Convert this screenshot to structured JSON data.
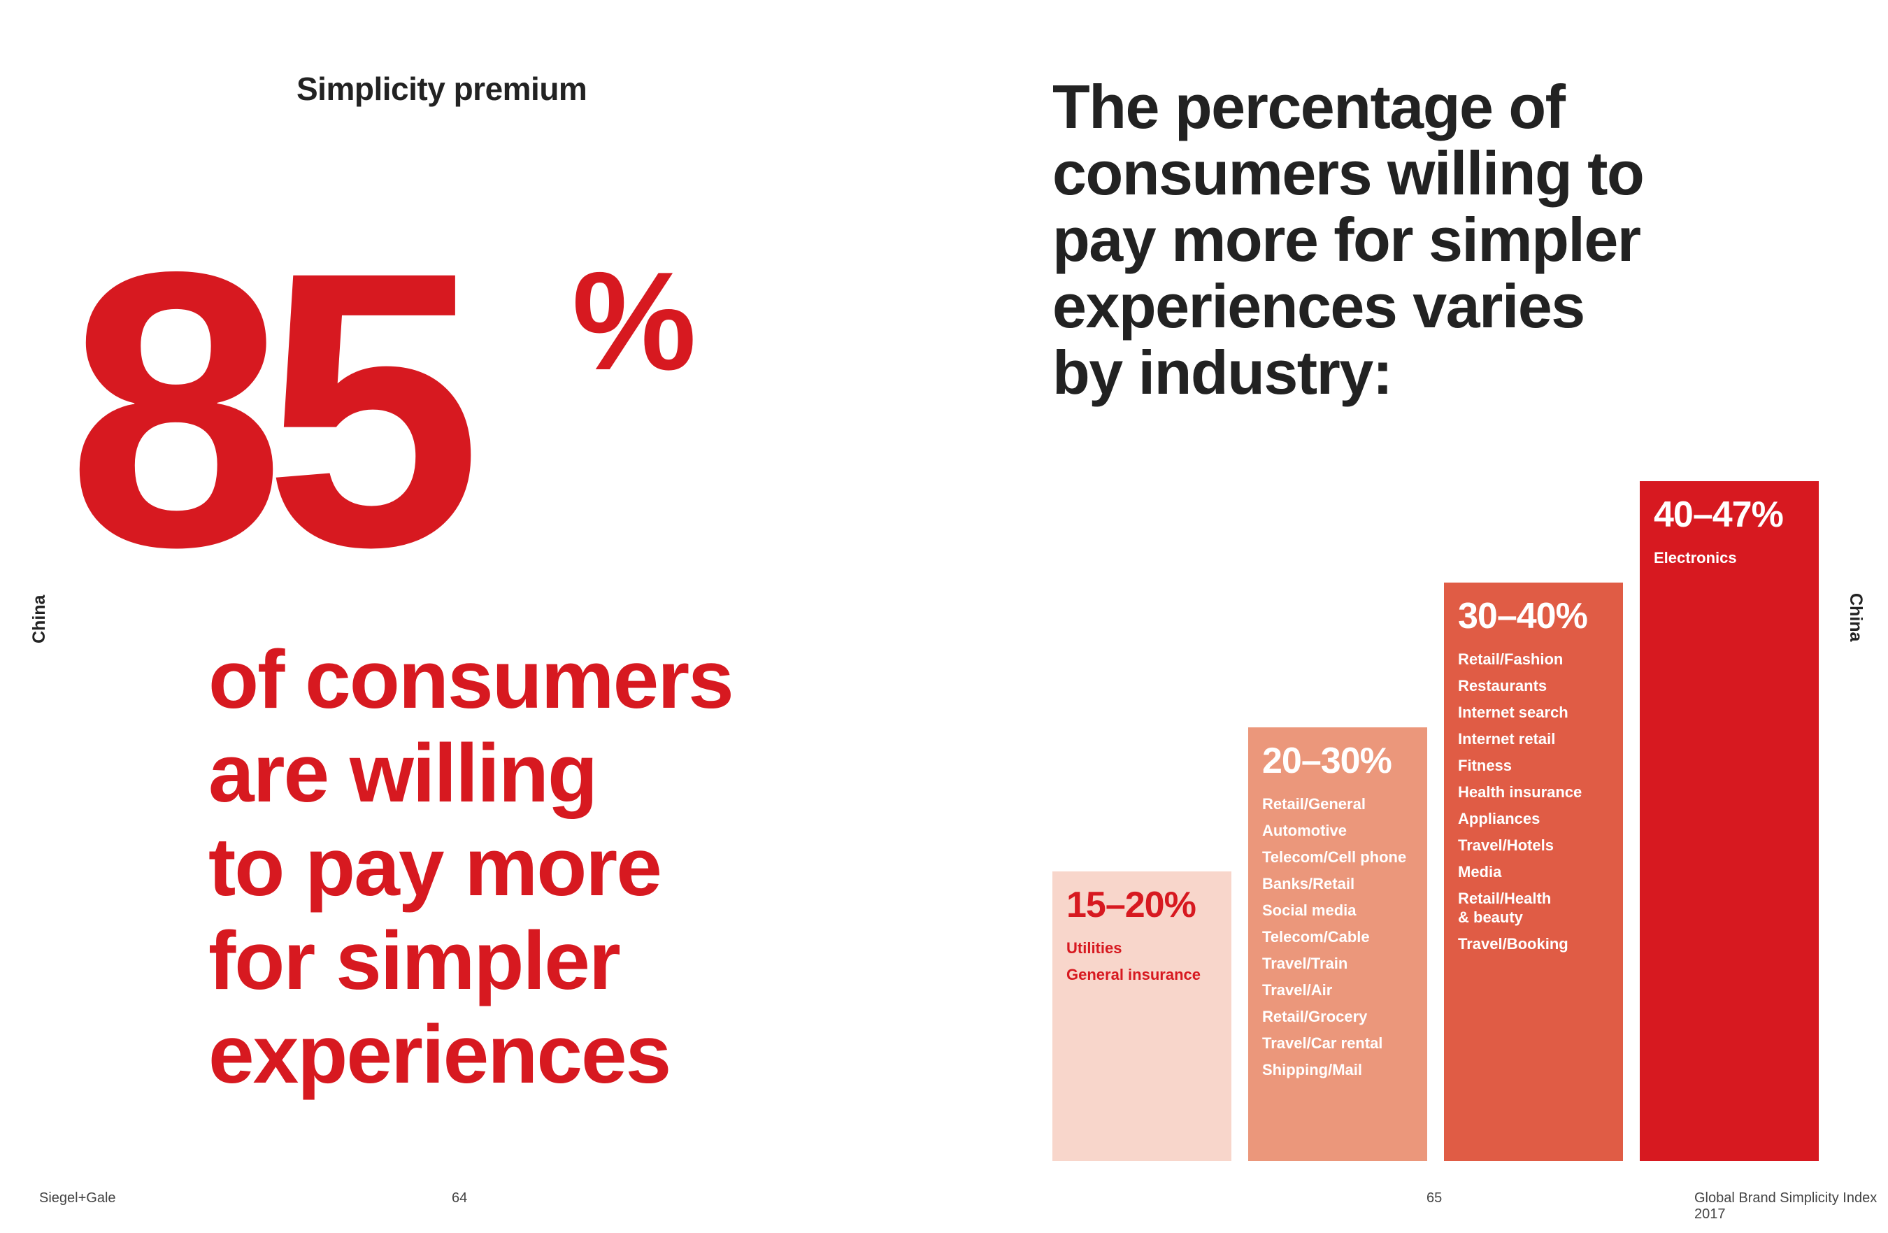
{
  "left_page": {
    "section_title": "Simplicity premium",
    "big_number": "85",
    "big_percent": "%",
    "statement_lines": [
      "of consumers",
      "are willing",
      "to pay more",
      "for simpler",
      "experiences"
    ],
    "side_label": "China",
    "footer_brand": "Siegel+Gale",
    "page_number": "64"
  },
  "right_page": {
    "title_lines": [
      "The percentage of",
      "consumers willing to",
      "pay more for simpler",
      "experiences varies",
      "by industry:"
    ],
    "side_label": "China",
    "page_number": "65",
    "footer_publication": "Global Brand Simplicity Index 2017"
  },
  "colors": {
    "brand_red": "#d71920",
    "tier1": "#f8d6cb",
    "tier2": "#eb977b",
    "tier3": "#e05c45",
    "tier4": "#d71920",
    "text_dark": "#222222"
  },
  "chart_data": {
    "type": "bar",
    "title": "The percentage of consumers willing to pay more for simpler experiences varies by industry:",
    "categories": [
      "15–20%",
      "20–30%",
      "30–40%",
      "40–47%"
    ],
    "ranges": [
      [
        15,
        20
      ],
      [
        20,
        30
      ],
      [
        30,
        40
      ],
      [
        40,
        47
      ]
    ],
    "values": [
      20,
      30,
      40,
      47
    ],
    "ylim": [
      0,
      47
    ],
    "industries": [
      [
        "Utilities",
        "General insurance"
      ],
      [
        "Retail/General",
        "Automotive",
        "Telecom/Cell phone",
        "Banks/Retail",
        "Social media",
        "Telecom/Cable",
        "Travel/Train",
        "Travel/Air",
        "Retail/Grocery",
        "Travel/Car rental",
        "Shipping/Mail"
      ],
      [
        "Retail/Fashion",
        "Restaurants",
        "Internet search",
        "Internet retail",
        "Fitness",
        "Health insurance",
        "Appliances",
        "Travel/Hotels",
        "Media",
        "Retail/Health\n& beauty",
        "Travel/Booking"
      ],
      [
        "Electronics"
      ]
    ],
    "xlabel": "",
    "ylabel": "",
    "grid": false
  }
}
